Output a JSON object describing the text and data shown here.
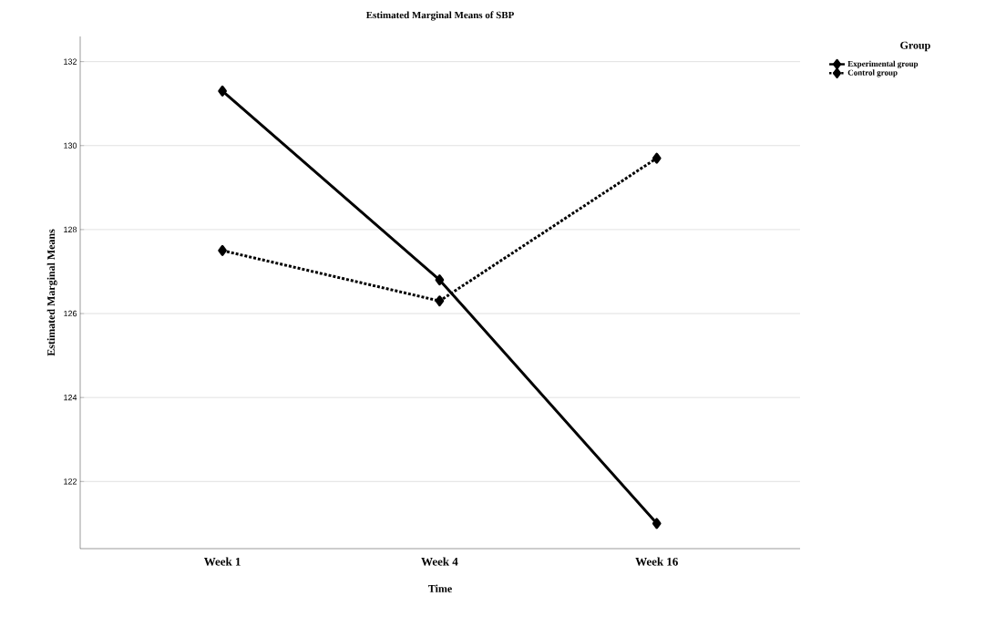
{
  "chart_data": {
    "type": "line",
    "title": "Estimated Marginal Means of SBP",
    "xlabel": "Time",
    "ylabel": "Estimated Marginal Means",
    "legend_title": "Group",
    "categories": [
      "Week 1",
      "Week 4",
      "Week 16"
    ],
    "series": [
      {
        "name": "Experimental group",
        "color": "#000000",
        "line_style": "solid",
        "values": [
          131.3,
          126.8,
          121.0
        ]
      },
      {
        "name": "Control group",
        "color": "#000000",
        "line_style": "dotted",
        "values": [
          127.5,
          126.3,
          129.7
        ]
      }
    ],
    "ylim": [
      120.4,
      132.6
    ],
    "yticks": [
      122,
      124,
      126,
      128,
      130,
      132
    ],
    "grid": "y",
    "legend": "top right",
    "marker": "diamond"
  }
}
